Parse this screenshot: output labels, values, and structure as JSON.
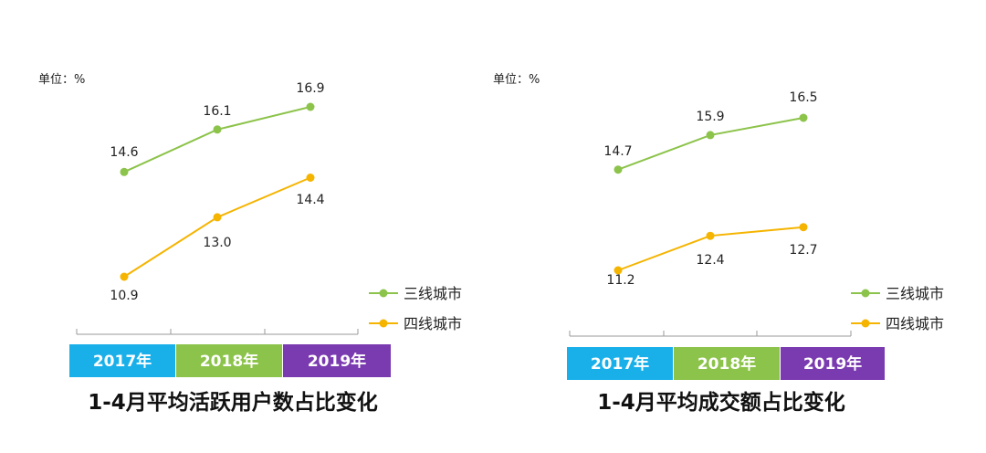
{
  "colors": {
    "tier3": "#8cc34a",
    "tier4": "#f5b400",
    "year2017": "#19b0ea",
    "year2018": "#8cc34a",
    "year2019": "#7a3ab0",
    "axis": "#9a9a9a"
  },
  "chart_data": [
    {
      "type": "line",
      "title": "1-4月平均活跃用户数占比变化",
      "unit_label": "单位：%",
      "categories": [
        "2017年",
        "2018年",
        "2019年"
      ],
      "series": [
        {
          "name": "三线城市",
          "values": [
            14.6,
            16.1,
            16.9
          ],
          "labels": [
            "14.6",
            "16.1",
            "16.9"
          ]
        },
        {
          "name": "四线城市",
          "values": [
            10.9,
            13.0,
            14.4
          ],
          "labels": [
            "10.9",
            "13.0",
            "14.4"
          ]
        }
      ],
      "legend": [
        "三线城市",
        "四线城市"
      ]
    },
    {
      "type": "line",
      "title": "1-4月平均成交额占比变化",
      "unit_label": "单位：%",
      "categories": [
        "2017年",
        "2018年",
        "2019年"
      ],
      "series": [
        {
          "name": "三线城市",
          "values": [
            14.7,
            15.9,
            16.5
          ],
          "labels": [
            "14.7",
            "15.9",
            "16.5"
          ]
        },
        {
          "name": "四线城市",
          "values": [
            11.2,
            12.4,
            12.7
          ],
          "labels": [
            "11.2",
            "12.4",
            "12.7"
          ]
        }
      ],
      "legend": [
        "三线城市",
        "四线城市"
      ]
    }
  ]
}
